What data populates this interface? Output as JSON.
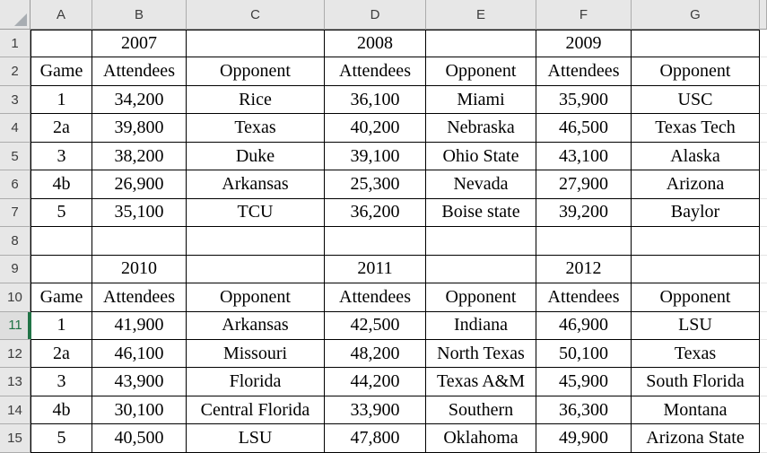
{
  "spreadsheet": {
    "column_headers": [
      "A",
      "B",
      "C",
      "D",
      "E",
      "F",
      "G"
    ],
    "selection": {
      "active_cell": "A11",
      "selected_row_header": "11"
    },
    "colors": {
      "accent_green": "#217346",
      "header_bg": "#e7e7e7",
      "selected_header_bg": "#dedede",
      "cell_border": "#000000",
      "header_divider": "#acacac"
    },
    "rows": [
      {
        "header": "1",
        "cells": [
          "",
          "2007",
          "",
          "2008",
          "",
          "2009",
          ""
        ]
      },
      {
        "header": "2",
        "cells": [
          "Game",
          "Attendees",
          "Opponent",
          "Attendees",
          "Opponent",
          "Attendees",
          "Opponent"
        ]
      },
      {
        "header": "3",
        "cells": [
          "1",
          "34,200",
          "Rice",
          "36,100",
          "Miami",
          "35,900",
          "USC"
        ]
      },
      {
        "header": "4",
        "cells": [
          "2a",
          "39,800",
          "Texas",
          "40,200",
          "Nebraska",
          "46,500",
          "Texas Tech"
        ]
      },
      {
        "header": "5",
        "cells": [
          "3",
          "38,200",
          "Duke",
          "39,100",
          "Ohio State",
          "43,100",
          "Alaska"
        ]
      },
      {
        "header": "6",
        "cells": [
          "4b",
          "26,900",
          "Arkansas",
          "25,300",
          "Nevada",
          "27,900",
          "Arizona"
        ]
      },
      {
        "header": "7",
        "cells": [
          "5",
          "35,100",
          "TCU",
          "36,200",
          "Boise state",
          "39,200",
          "Baylor"
        ]
      },
      {
        "header": "8",
        "cells": [
          "",
          "",
          "",
          "",
          "",
          "",
          ""
        ]
      },
      {
        "header": "9",
        "cells": [
          "",
          "2010",
          "",
          "2011",
          "",
          "2012",
          ""
        ]
      },
      {
        "header": "10",
        "cells": [
          "Game",
          "Attendees",
          "Opponent",
          "Attendees",
          "Opponent",
          "Attendees",
          "Opponent"
        ]
      },
      {
        "header": "11",
        "cells": [
          "1",
          "41,900",
          "Arkansas",
          "42,500",
          "Indiana",
          "46,900",
          "LSU"
        ]
      },
      {
        "header": "12",
        "cells": [
          "2a",
          "46,100",
          "Missouri",
          "48,200",
          "North Texas",
          "50,100",
          "Texas"
        ]
      },
      {
        "header": "13",
        "cells": [
          "3",
          "43,900",
          "Florida",
          "44,200",
          "Texas A&M",
          "45,900",
          "South Florida"
        ]
      },
      {
        "header": "14",
        "cells": [
          "4b",
          "30,100",
          "Central Florida",
          "33,900",
          "Southern",
          "36,300",
          "Montana"
        ]
      },
      {
        "header": "15",
        "cells": [
          "5",
          "40,500",
          "LSU",
          "47,800",
          "Oklahoma",
          "49,900",
          "Arizona State"
        ]
      }
    ]
  }
}
